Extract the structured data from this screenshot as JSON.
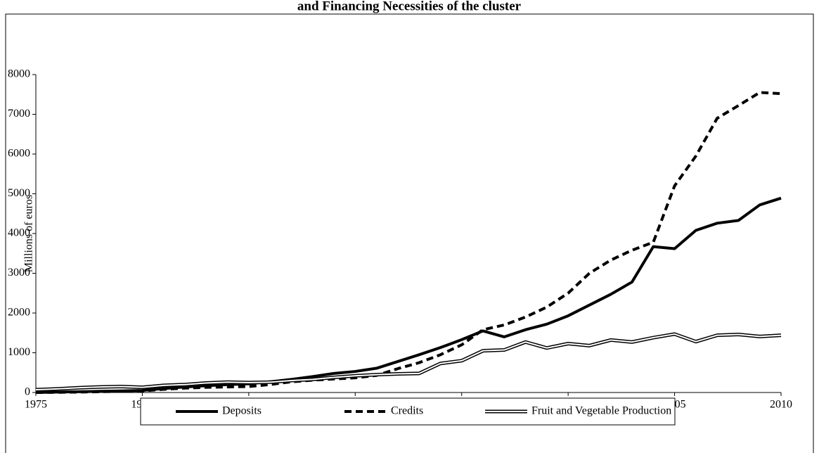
{
  "chart_data": {
    "type": "line",
    "title": "and Financing Necessities of the cluster",
    "y_label": "Millions of euros",
    "x": [
      1975,
      1976,
      1977,
      1978,
      1979,
      1980,
      1981,
      1982,
      1983,
      1984,
      1985,
      1986,
      1987,
      1988,
      1989,
      1990,
      1991,
      1992,
      1993,
      1994,
      1995,
      1996,
      1997,
      1998,
      1999,
      2000,
      2001,
      2002,
      2003,
      2004,
      2005,
      2006,
      2007,
      2008,
      2009,
      2010
    ],
    "series": [
      {
        "name": "Deposits",
        "color": "#000000",
        "style": "solid",
        "values": [
          0,
          10,
          20,
          30,
          40,
          50,
          100,
          140,
          170,
          200,
          220,
          270,
          330,
          400,
          480,
          530,
          610,
          780,
          950,
          1130,
          1330,
          1550,
          1400,
          1580,
          1720,
          1930,
          2200,
          2470,
          2780,
          3670,
          3620,
          4080,
          4260,
          4330,
          4720,
          4890
        ]
      },
      {
        "name": "Credits",
        "color": "#000000",
        "style": "dashed",
        "values": [
          0,
          5,
          10,
          20,
          30,
          40,
          80,
          110,
          130,
          140,
          150,
          200,
          270,
          310,
          340,
          370,
          430,
          600,
          750,
          950,
          1200,
          1580,
          1700,
          1900,
          2150,
          2500,
          3000,
          3330,
          3580,
          3780,
          5200,
          5950,
          6900,
          7220,
          7550,
          7520
        ]
      },
      {
        "name": "Fruit and Vegetable Production",
        "color": "#000000",
        "style": "double",
        "values": [
          70,
          90,
          120,
          140,
          150,
          130,
          180,
          200,
          240,
          260,
          250,
          260,
          300,
          330,
          380,
          420,
          450,
          470,
          480,
          730,
          800,
          1050,
          1070,
          1270,
          1120,
          1230,
          1180,
          1320,
          1270,
          1380,
          1470,
          1280,
          1440,
          1460,
          1410,
          1440
        ]
      }
    ],
    "xlim": [
      1975,
      2010
    ],
    "xticks": [
      1975,
      1980,
      1985,
      1990,
      1995,
      2000,
      2005,
      2010
    ],
    "ylim": [
      0,
      8000
    ],
    "yticks": [
      0,
      1000,
      2000,
      3000,
      4000,
      5000,
      6000,
      7000,
      8000
    ],
    "grid": false,
    "legend": "bottom"
  }
}
